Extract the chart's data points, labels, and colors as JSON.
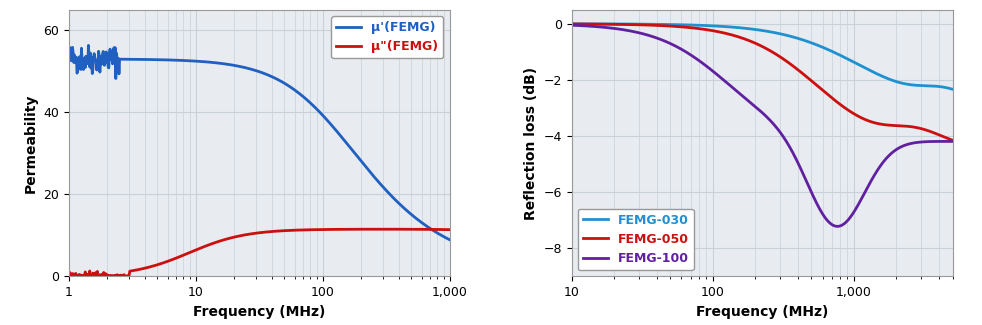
{
  "left": {
    "xlabel": "Frequency (MHz)",
    "ylabel": "Permeability",
    "xlim": [
      1,
      1000
    ],
    "ylim": [
      0,
      65
    ],
    "yticks": [
      0,
      20,
      40,
      60
    ],
    "xticks": [
      1,
      10,
      100,
      1000
    ],
    "xtick_labels": [
      "1",
      "10",
      "100",
      "1,000"
    ],
    "legend": [
      "μ'(FEMG)",
      "μ\"(FEMG)"
    ],
    "line_colors": [
      "#2060c0",
      "#cc1010"
    ],
    "grid_color": "#c8d0d8",
    "bg_color": "#e8ecf0"
  },
  "right": {
    "xlabel": "Frequency (MHz)",
    "ylabel": "Reflection loss (dB)",
    "xlim": [
      10,
      5000
    ],
    "ylim": [
      -9,
      0.5
    ],
    "yticks": [
      0,
      -2,
      -4,
      -6,
      -8
    ],
    "xticks": [
      10,
      100,
      1000
    ],
    "xtick_labels": [
      "10",
      "100",
      "1,000"
    ],
    "legend": [
      "FEMG-030",
      "FEMG-050",
      "FEMG-100"
    ],
    "line_colors": [
      "#2090d0",
      "#cc1010",
      "#6020a0"
    ],
    "grid_color": "#c8d0d8",
    "bg_color": "#e8ecf0"
  }
}
